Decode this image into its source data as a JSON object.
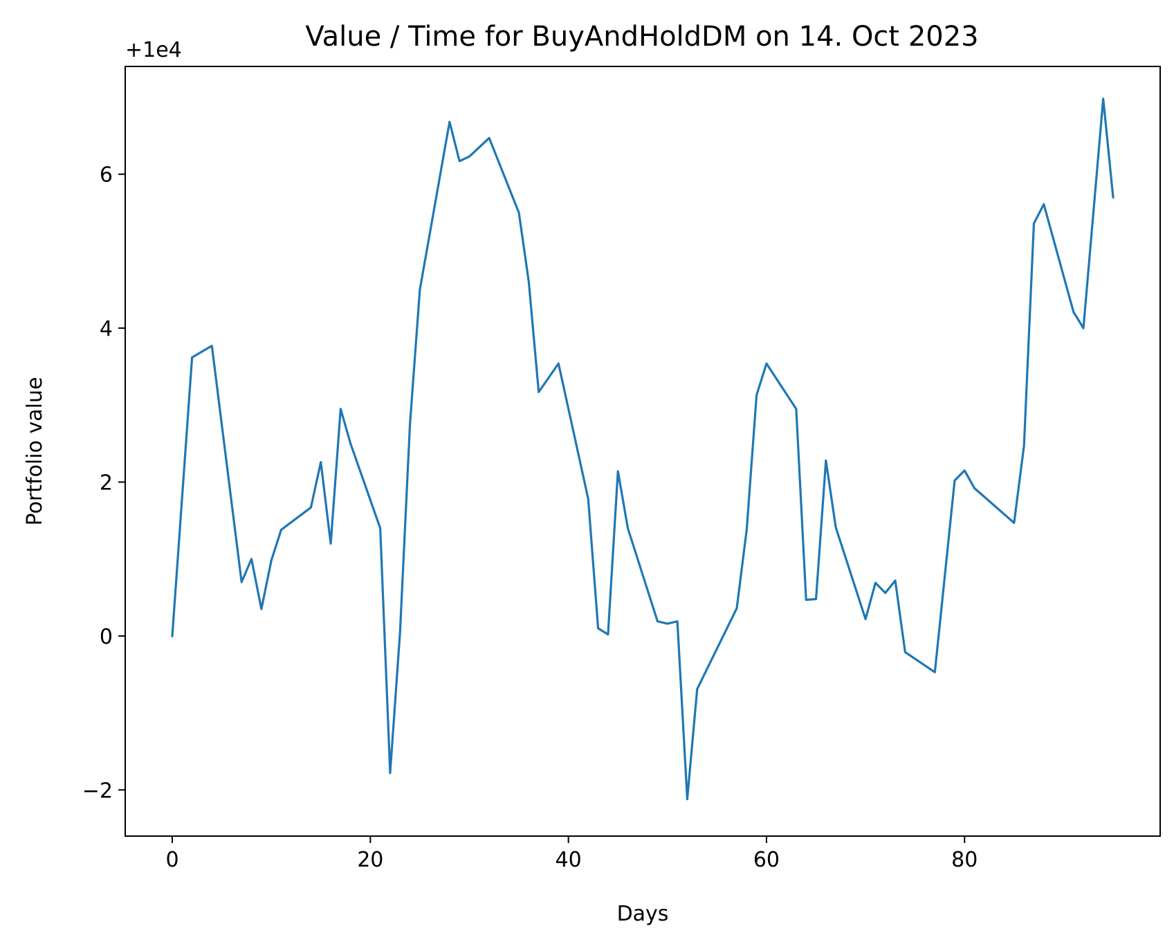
{
  "chart_data": {
    "type": "line",
    "title": "Value / Time for BuyAndHoldDM on 14. Oct 2023",
    "xlabel": "Days",
    "ylabel": "Portfolio value",
    "offset_label": "+1e4",
    "xlim": [
      -4.75,
      99.75
    ],
    "ylim": [
      -2.6,
      7.4
    ],
    "xticks": [
      0,
      20,
      40,
      60,
      80
    ],
    "xtick_labels": [
      "0",
      "20",
      "40",
      "60",
      "80"
    ],
    "yticks": [
      -2,
      0,
      2,
      4,
      6
    ],
    "ytick_labels": [
      "−2",
      "0",
      "2",
      "4",
      "6"
    ],
    "grid": false,
    "line_color": "#1f77b4",
    "series": [
      {
        "x": [
          0,
          2,
          4,
          7,
          8,
          9,
          10,
          11,
          14,
          15,
          16,
          17,
          18,
          21,
          22,
          23,
          24,
          25,
          28,
          29,
          30,
          32,
          35,
          36,
          37,
          39,
          42,
          43,
          44,
          45,
          46,
          49,
          50,
          51,
          52,
          53,
          57,
          58,
          59,
          60,
          63,
          64,
          65,
          66,
          67,
          70,
          71,
          72,
          73,
          74,
          77,
          79,
          80,
          81,
          85,
          86,
          87,
          88,
          91,
          92,
          94,
          95
        ],
        "y": [
          0,
          3.62,
          3.77,
          0.7,
          1.0,
          0.35,
          0.98,
          1.38,
          1.67,
          2.26,
          1.2,
          2.95,
          2.5,
          1.4,
          -1.78,
          0.05,
          2.75,
          4.5,
          6.68,
          6.17,
          6.23,
          6.47,
          5.5,
          4.6,
          3.17,
          3.54,
          1.78,
          0.1,
          0.02,
          2.14,
          1.4,
          0.19,
          0.16,
          0.19,
          -2.12,
          -0.69,
          0.36,
          1.38,
          3.13,
          3.54,
          2.95,
          0.47,
          0.48,
          2.28,
          1.41,
          0.22,
          0.69,
          0.56,
          0.72,
          -0.21,
          -0.47,
          2.02,
          2.15,
          1.92,
          1.47,
          2.47,
          5.36,
          5.61,
          4.21,
          4.0,
          6.98,
          5.7
        ]
      }
    ]
  }
}
